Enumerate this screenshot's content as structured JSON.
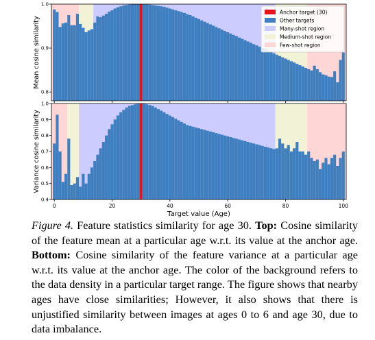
{
  "colors": {
    "many": "#ccccff",
    "medium": "#f2f2d7",
    "few": "#ffd6d6",
    "bar": "#3f7fbf",
    "anchor": "#e8121a"
  },
  "chart_data": [
    {
      "type": "bar",
      "ylabel": "Mean cosine similarity",
      "xlim": [
        -1,
        101
      ],
      "ylim": [
        0.78,
        1.0
      ],
      "yticks": [
        0.8,
        0.9,
        1.0
      ],
      "yticklabels": [
        "0.8",
        "0.9",
        "1.0"
      ],
      "xticks": [
        0,
        20,
        40,
        60,
        80,
        100
      ],
      "show_xticklabels": false,
      "regions": [
        {
          "type": "few",
          "from": -1,
          "to": 8.5
        },
        {
          "type": "medium",
          "from": 8.5,
          "to": 13.5
        },
        {
          "type": "many",
          "from": 13.5,
          "to": 76.5
        },
        {
          "type": "medium",
          "from": 76.5,
          "to": 87.5
        },
        {
          "type": "few",
          "from": 87.5,
          "to": 101
        }
      ],
      "anchor": 30,
      "legend": {
        "position": "top-right",
        "entries": [
          {
            "label": "Anchor target (30)",
            "kind": "anchor"
          },
          {
            "label": "Other targets",
            "kind": "bar"
          },
          {
            "label": "Many-shot region",
            "kind": "many"
          },
          {
            "label": "Medium-shot region",
            "kind": "medium"
          },
          {
            "label": "Few-shot region",
            "kind": "few"
          }
        ]
      },
      "x": [
        0,
        1,
        2,
        3,
        4,
        5,
        6,
        7,
        8,
        9,
        10,
        11,
        12,
        13,
        14,
        15,
        16,
        17,
        18,
        19,
        20,
        21,
        22,
        23,
        24,
        25,
        26,
        27,
        28,
        29,
        30,
        31,
        32,
        33,
        34,
        35,
        36,
        37,
        38,
        39,
        40,
        41,
        42,
        43,
        44,
        45,
        46,
        47,
        48,
        49,
        50,
        51,
        52,
        53,
        54,
        55,
        56,
        57,
        58,
        59,
        60,
        61,
        62,
        63,
        64,
        65,
        66,
        67,
        68,
        69,
        70,
        71,
        72,
        73,
        74,
        75,
        76,
        77,
        78,
        79,
        80,
        81,
        82,
        83,
        84,
        85,
        86,
        87,
        88,
        89,
        90,
        91,
        92,
        93,
        94,
        95,
        96,
        97,
        98,
        99,
        100
      ],
      "values": [
        0.988,
        0.982,
        0.948,
        0.956,
        0.958,
        0.975,
        0.952,
        0.952,
        0.978,
        0.955,
        0.946,
        0.936,
        0.94,
        0.943,
        0.958,
        0.972,
        0.97,
        0.974,
        0.978,
        0.983,
        0.986,
        0.99,
        0.993,
        0.995,
        0.997,
        0.998,
        0.999,
        1.0,
        1.0,
        1.0,
        1.0,
        1.0,
        1.0,
        0.999,
        0.998,
        0.997,
        0.996,
        0.995,
        0.994,
        0.992,
        0.99,
        0.988,
        0.986,
        0.984,
        0.982,
        0.98,
        0.977,
        0.975,
        0.972,
        0.969,
        0.966,
        0.963,
        0.96,
        0.957,
        0.954,
        0.951,
        0.948,
        0.945,
        0.942,
        0.939,
        0.936,
        0.933,
        0.93,
        0.927,
        0.924,
        0.921,
        0.918,
        0.915,
        0.912,
        0.909,
        0.906,
        0.903,
        0.9,
        0.897,
        0.894,
        0.891,
        0.888,
        0.885,
        0.882,
        0.879,
        0.876,
        0.873,
        0.87,
        0.867,
        0.864,
        0.861,
        0.858,
        0.855,
        0.852,
        0.849,
        0.86,
        0.852,
        0.845,
        0.84,
        0.838,
        0.835,
        0.834,
        0.847,
        0.822,
        0.873,
        0.89
      ]
    },
    {
      "type": "bar",
      "ylabel": "Variance cosine similarity",
      "xlabel": "Target value (Age)",
      "xlim": [
        -1,
        101
      ],
      "ylim": [
        0.4,
        1.0
      ],
      "yticks": [
        0.4,
        0.5,
        0.6,
        0.7,
        0.8,
        0.9,
        1.0
      ],
      "yticklabels": [
        "0.4",
        "0.5",
        "0.6",
        "0.7",
        "0.8",
        "0.9",
        "1.0"
      ],
      "xticks": [
        0,
        20,
        40,
        60,
        80,
        100
      ],
      "xticklabels": [
        "0",
        "20",
        "40",
        "60",
        "80",
        "100"
      ],
      "show_xticklabels": true,
      "regions": [
        {
          "type": "few",
          "from": -1,
          "to": 4.5
        },
        {
          "type": "medium",
          "from": 4.5,
          "to": 8.5
        },
        {
          "type": "many",
          "from": 8.5,
          "to": 76.5
        },
        {
          "type": "medium",
          "from": 76.5,
          "to": 87.5
        },
        {
          "type": "few",
          "from": 87.5,
          "to": 101
        }
      ],
      "anchor": 30,
      "x": [
        0,
        1,
        2,
        3,
        4,
        5,
        6,
        7,
        8,
        9,
        10,
        11,
        12,
        13,
        14,
        15,
        16,
        17,
        18,
        19,
        20,
        21,
        22,
        23,
        24,
        25,
        26,
        27,
        28,
        29,
        30,
        31,
        32,
        33,
        34,
        35,
        36,
        37,
        38,
        39,
        40,
        41,
        42,
        43,
        44,
        45,
        46,
        47,
        48,
        49,
        50,
        51,
        52,
        53,
        54,
        55,
        56,
        57,
        58,
        59,
        60,
        61,
        62,
        63,
        64,
        65,
        66,
        67,
        68,
        69,
        70,
        71,
        72,
        73,
        74,
        75,
        76,
        77,
        78,
        79,
        80,
        81,
        82,
        83,
        84,
        85,
        86,
        87,
        88,
        89,
        90,
        91,
        92,
        93,
        94,
        95,
        96,
        97,
        98,
        99,
        100
      ],
      "values": [
        0.75,
        0.93,
        0.7,
        0.51,
        0.56,
        0.78,
        0.49,
        0.5,
        0.54,
        0.48,
        0.56,
        0.5,
        0.56,
        0.6,
        0.64,
        0.68,
        0.72,
        0.76,
        0.8,
        0.84,
        0.87,
        0.9,
        0.925,
        0.945,
        0.96,
        0.975,
        0.985,
        0.99,
        0.995,
        1.0,
        1.0,
        1.0,
        0.995,
        0.99,
        0.985,
        0.975,
        0.965,
        0.955,
        0.945,
        0.935,
        0.925,
        0.915,
        0.905,
        0.895,
        0.885,
        0.875,
        0.865,
        0.86,
        0.855,
        0.85,
        0.845,
        0.84,
        0.835,
        0.83,
        0.825,
        0.82,
        0.815,
        0.81,
        0.805,
        0.8,
        0.795,
        0.79,
        0.785,
        0.78,
        0.775,
        0.77,
        0.765,
        0.76,
        0.755,
        0.75,
        0.745,
        0.74,
        0.735,
        0.73,
        0.725,
        0.72,
        0.715,
        0.72,
        0.78,
        0.75,
        0.72,
        0.74,
        0.7,
        0.72,
        0.76,
        0.7,
        0.7,
        0.68,
        0.7,
        0.66,
        0.64,
        0.65,
        0.59,
        0.63,
        0.66,
        0.62,
        0.66,
        0.68,
        0.61,
        0.66,
        0.7
      ]
    }
  ],
  "caption": {
    "figure_label": "Figure 4.",
    "text1": " Feature statistics similarity for age 30. ",
    "top_label": "Top:",
    "text2": " Cosine similarity of the feature mean at a particular age w.r.t. its value at the anchor age. ",
    "bottom_label": "Bottom:",
    "text3": " Cosine similarity of the feature variance at a particular age w.r.t. its value at the anchor age. The color of the background refers to the data density in a particular target range. The figure shows that nearby ages have close similarities; However, it also shows that there is unjustified similarity between images at ages 0 to 6 and age 30, due to data imbalance."
  }
}
